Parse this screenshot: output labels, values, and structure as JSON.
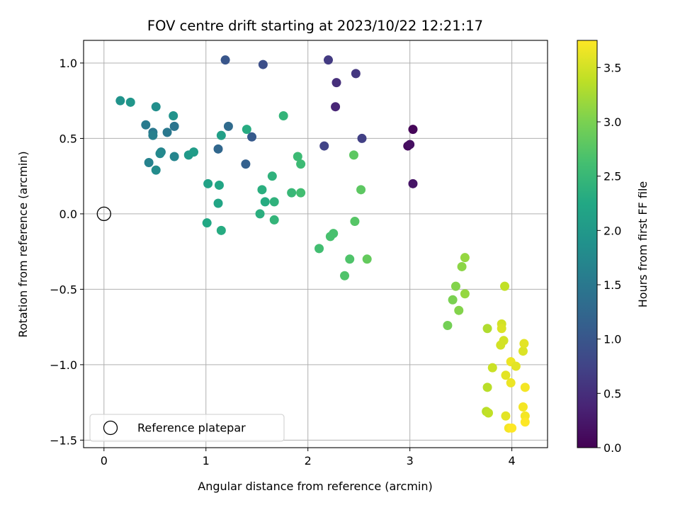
{
  "chart_data": {
    "type": "scatter",
    "title": "FOV centre drift starting at 2023/10/22 12:21:17",
    "xlabel": "Angular distance from reference (arcmin)",
    "ylabel": "Rotation from reference (arcmin)",
    "xlim": [
      -0.2,
      4.35
    ],
    "ylim": [
      -1.55,
      1.15
    ],
    "xticks": [
      0,
      1,
      2,
      3,
      4
    ],
    "xtick_labels": [
      "0",
      "1",
      "2",
      "3",
      "4"
    ],
    "yticks": [
      -1.5,
      -1.0,
      -0.5,
      0.0,
      0.5,
      1.0
    ],
    "ytick_labels": [
      "−1.5",
      "−1.0",
      "−0.5",
      "0.0",
      "0.5",
      "1.0"
    ],
    "grid": true,
    "legend": {
      "entries": [
        "Reference platepar"
      ],
      "placement": "lower-left"
    },
    "reference_point": {
      "x": 0,
      "y": 0,
      "label": "Reference platepar"
    },
    "colorbar": {
      "label": "Hours from first FF file",
      "colormap": "viridis",
      "range": [
        0,
        3.75
      ],
      "ticks": [
        0,
        0.5,
        1.0,
        1.5,
        2.0,
        2.5,
        3.0,
        3.5
      ],
      "tick_labels": [
        "0.0",
        "0.5",
        "1.0",
        "1.5",
        "2.0",
        "2.5",
        "3.0",
        "3.5"
      ]
    },
    "points": [
      {
        "x": 3.03,
        "y": 0.56,
        "c": 0.05
      },
      {
        "x": 2.98,
        "y": 0.45,
        "c": 0.1
      },
      {
        "x": 3.0,
        "y": 0.46,
        "c": 0.15
      },
      {
        "x": 3.03,
        "y": 0.2,
        "c": 0.2
      },
      {
        "x": 2.27,
        "y": 0.71,
        "c": 0.4
      },
      {
        "x": 2.28,
        "y": 0.87,
        "c": 0.5
      },
      {
        "x": 2.47,
        "y": 0.93,
        "c": 0.6
      },
      {
        "x": 2.53,
        "y": 0.5,
        "c": 0.7
      },
      {
        "x": 2.2,
        "y": 1.02,
        "c": 0.65
      },
      {
        "x": 2.16,
        "y": 0.45,
        "c": 0.75
      },
      {
        "x": 1.56,
        "y": 0.99,
        "c": 0.9
      },
      {
        "x": 1.19,
        "y": 1.02,
        "c": 1.0
      },
      {
        "x": 1.45,
        "y": 0.51,
        "c": 1.05
      },
      {
        "x": 1.39,
        "y": 0.33,
        "c": 1.15
      },
      {
        "x": 1.12,
        "y": 0.43,
        "c": 1.25
      },
      {
        "x": 1.22,
        "y": 0.58,
        "c": 1.3
      },
      {
        "x": 0.69,
        "y": 0.58,
        "c": 1.45
      },
      {
        "x": 0.62,
        "y": 0.54,
        "c": 1.5
      },
      {
        "x": 0.41,
        "y": 0.59,
        "c": 1.55
      },
      {
        "x": 0.48,
        "y": 0.54,
        "c": 1.5
      },
      {
        "x": 0.48,
        "y": 0.52,
        "c": 1.6
      },
      {
        "x": 0.44,
        "y": 0.34,
        "c": 1.65
      },
      {
        "x": 0.56,
        "y": 0.41,
        "c": 1.7
      },
      {
        "x": 0.55,
        "y": 0.4,
        "c": 1.75
      },
      {
        "x": 0.69,
        "y": 0.38,
        "c": 1.7
      },
      {
        "x": 0.51,
        "y": 0.29,
        "c": 1.8
      },
      {
        "x": 0.51,
        "y": 0.71,
        "c": 1.85
      },
      {
        "x": 0.68,
        "y": 0.65,
        "c": 1.9
      },
      {
        "x": 0.26,
        "y": 0.74,
        "c": 1.95
      },
      {
        "x": 0.16,
        "y": 0.75,
        "c": 1.9
      },
      {
        "x": 0.83,
        "y": 0.39,
        "c": 2.0
      },
      {
        "x": 0.88,
        "y": 0.41,
        "c": 2.05
      },
      {
        "x": 1.15,
        "y": 0.52,
        "c": 2.1
      },
      {
        "x": 1.02,
        "y": 0.2,
        "c": 2.15
      },
      {
        "x": 1.13,
        "y": 0.19,
        "c": 2.2
      },
      {
        "x": 1.12,
        "y": 0.07,
        "c": 2.2
      },
      {
        "x": 1.01,
        "y": -0.06,
        "c": 2.25
      },
      {
        "x": 1.15,
        "y": -0.11,
        "c": 2.3
      },
      {
        "x": 1.4,
        "y": 0.56,
        "c": 2.3
      },
      {
        "x": 1.55,
        "y": 0.16,
        "c": 2.35
      },
      {
        "x": 1.58,
        "y": 0.08,
        "c": 2.3
      },
      {
        "x": 1.53,
        "y": 0.0,
        "c": 2.35
      },
      {
        "x": 1.67,
        "y": 0.08,
        "c": 2.4
      },
      {
        "x": 1.65,
        "y": 0.25,
        "c": 2.4
      },
      {
        "x": 1.67,
        "y": -0.04,
        "c": 2.45
      },
      {
        "x": 1.76,
        "y": 0.65,
        "c": 2.45
      },
      {
        "x": 1.84,
        "y": 0.14,
        "c": 2.5
      },
      {
        "x": 1.9,
        "y": 0.38,
        "c": 2.55
      },
      {
        "x": 1.93,
        "y": 0.33,
        "c": 2.55
      },
      {
        "x": 1.93,
        "y": 0.14,
        "c": 2.6
      },
      {
        "x": 2.11,
        "y": -0.23,
        "c": 2.6
      },
      {
        "x": 2.22,
        "y": -0.15,
        "c": 2.65
      },
      {
        "x": 2.25,
        "y": -0.13,
        "c": 2.65
      },
      {
        "x": 2.36,
        "y": -0.41,
        "c": 2.7
      },
      {
        "x": 2.41,
        "y": -0.3,
        "c": 2.7
      },
      {
        "x": 2.46,
        "y": -0.05,
        "c": 2.75
      },
      {
        "x": 2.45,
        "y": 0.39,
        "c": 2.8
      },
      {
        "x": 2.52,
        "y": 0.16,
        "c": 2.8
      },
      {
        "x": 2.58,
        "y": -0.3,
        "c": 2.85
      },
      {
        "x": 3.37,
        "y": -0.74,
        "c": 2.95
      },
      {
        "x": 3.42,
        "y": -0.57,
        "c": 3.0
      },
      {
        "x": 3.45,
        "y": -0.48,
        "c": 3.05
      },
      {
        "x": 3.48,
        "y": -0.64,
        "c": 3.05
      },
      {
        "x": 3.51,
        "y": -0.35,
        "c": 3.1
      },
      {
        "x": 3.54,
        "y": -0.29,
        "c": 3.15
      },
      {
        "x": 3.54,
        "y": -0.53,
        "c": 3.15
      },
      {
        "x": 3.76,
        "y": -0.76,
        "c": 3.3
      },
      {
        "x": 3.76,
        "y": -1.15,
        "c": 3.35
      },
      {
        "x": 3.75,
        "y": -1.31,
        "c": 3.35
      },
      {
        "x": 3.77,
        "y": -1.32,
        "c": 3.4
      },
      {
        "x": 3.81,
        "y": -1.02,
        "c": 3.45
      },
      {
        "x": 3.89,
        "y": -0.87,
        "c": 3.5
      },
      {
        "x": 3.9,
        "y": -0.73,
        "c": 3.5
      },
      {
        "x": 3.9,
        "y": -0.76,
        "c": 3.55
      },
      {
        "x": 3.92,
        "y": -0.84,
        "c": 3.5
      },
      {
        "x": 3.93,
        "y": -0.48,
        "c": 3.4
      },
      {
        "x": 3.94,
        "y": -1.07,
        "c": 3.6
      },
      {
        "x": 3.94,
        "y": -1.34,
        "c": 3.6
      },
      {
        "x": 3.97,
        "y": -1.42,
        "c": 3.7
      },
      {
        "x": 4.0,
        "y": -1.42,
        "c": 3.75
      },
      {
        "x": 3.99,
        "y": -0.98,
        "c": 3.65
      },
      {
        "x": 3.99,
        "y": -1.12,
        "c": 3.65
      },
      {
        "x": 4.04,
        "y": -1.01,
        "c": 3.6
      },
      {
        "x": 4.11,
        "y": -0.91,
        "c": 3.55
      },
      {
        "x": 4.12,
        "y": -0.86,
        "c": 3.6
      },
      {
        "x": 4.11,
        "y": -1.28,
        "c": 3.7
      },
      {
        "x": 4.13,
        "y": -1.34,
        "c": 3.7
      },
      {
        "x": 4.13,
        "y": -1.38,
        "c": 3.75
      },
      {
        "x": 4.13,
        "y": -1.15,
        "c": 3.7
      }
    ]
  }
}
